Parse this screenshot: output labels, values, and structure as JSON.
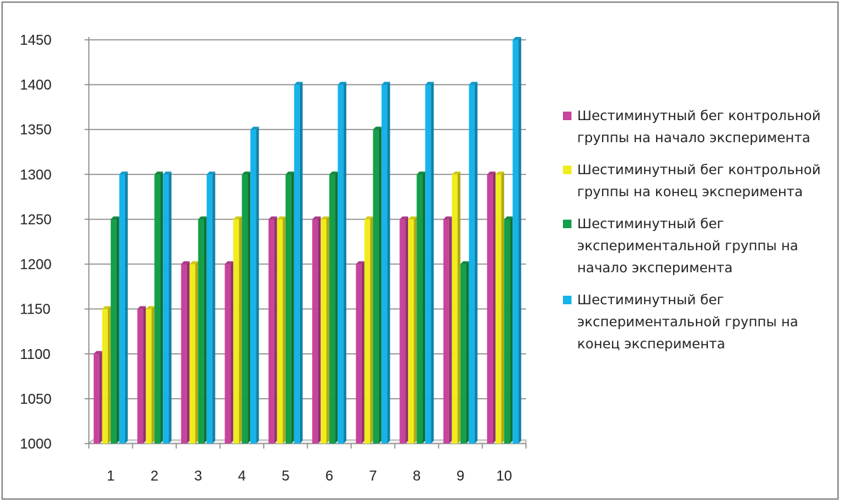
{
  "chart_data": {
    "type": "bar",
    "categories": [
      "1",
      "2",
      "3",
      "4",
      "5",
      "6",
      "7",
      "8",
      "9",
      "10"
    ],
    "series": [
      {
        "name": " Шестиминутный бег контрольной группы на начало эксперимента",
        "color": "#c8449c",
        "values": [
          1100,
          1150,
          1200,
          1200,
          1250,
          1250,
          1200,
          1250,
          1250,
          1300
        ]
      },
      {
        "name": "Шестиминутный бег контрольной группы на конец эксперимента",
        "color": "#f2ec1a",
        "values": [
          1150,
          1150,
          1200,
          1250,
          1250,
          1250,
          1250,
          1250,
          1300,
          1300
        ]
      },
      {
        "name": "Шестиминутный бег экспериментальной группы на начало эксперимента",
        "color": "#13a049",
        "values": [
          1250,
          1300,
          1250,
          1300,
          1300,
          1300,
          1350,
          1300,
          1200,
          1250
        ]
      },
      {
        "name": "Шестиминутный бег экспериментальной группы на конец эксперимента",
        "color": "#15b4ea",
        "values": [
          1300,
          1300,
          1300,
          1350,
          1400,
          1400,
          1400,
          1400,
          1400,
          1450
        ]
      }
    ],
    "ylim": [
      1000,
      1450
    ],
    "yticks": [
      1000,
      1050,
      1100,
      1150,
      1200,
      1250,
      1300,
      1350,
      1400,
      1450
    ],
    "grid": true,
    "legend_position": "right"
  }
}
